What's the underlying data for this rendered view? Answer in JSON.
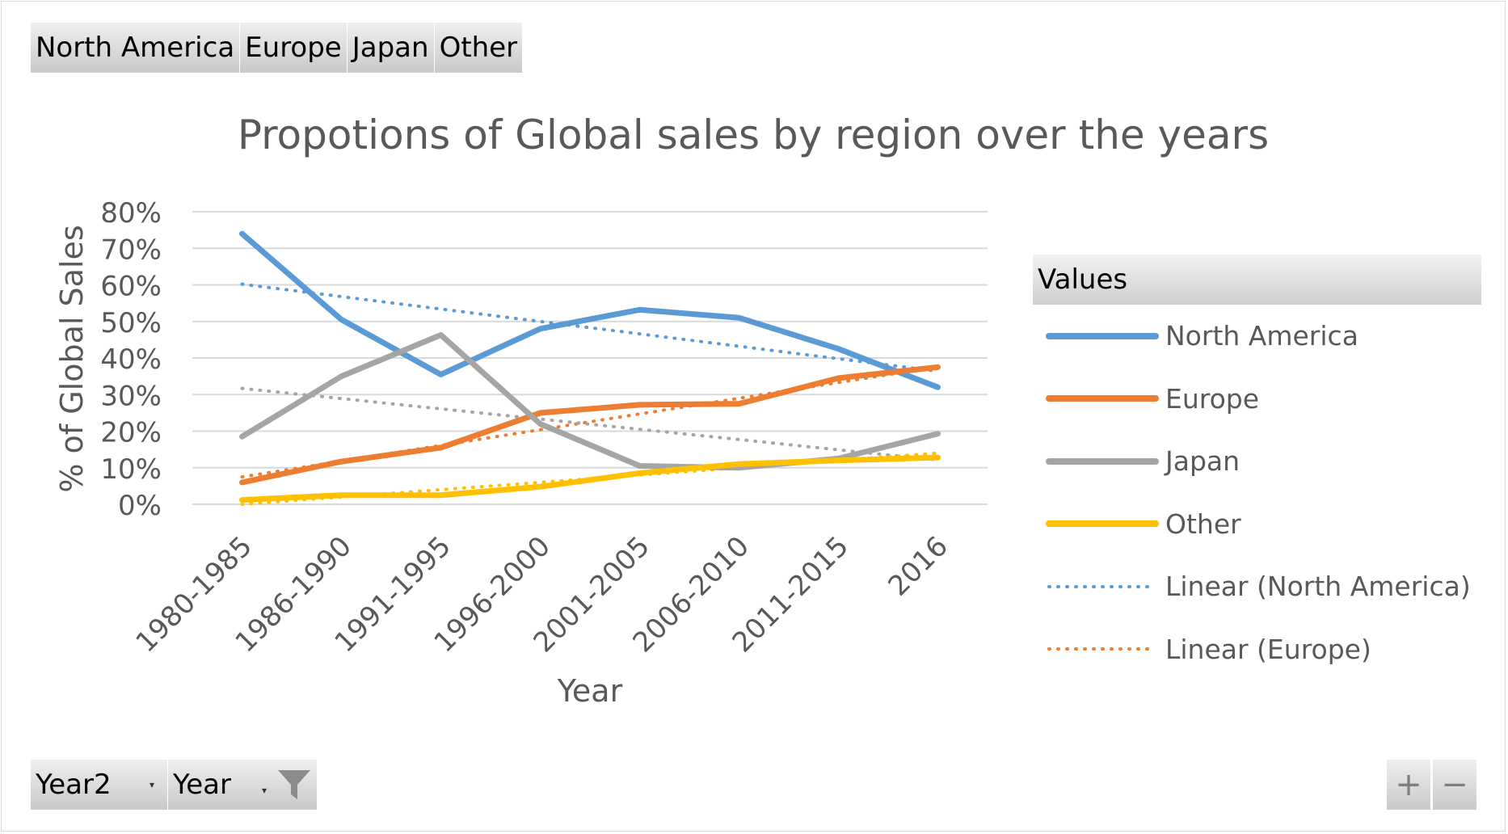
{
  "field_buttons_top": [
    "North America",
    "Europe",
    "Japan",
    "Other"
  ],
  "field_buttons_bottom": [
    {
      "label": "Year2",
      "icon": "dropdown-arrow-icon"
    },
    {
      "label": "Year",
      "icon": "filter-icon"
    }
  ],
  "zoom": {
    "plus": "+",
    "minus": "−"
  },
  "legend": {
    "header": "Values"
  },
  "colors": {
    "north_america": "#5B9BD5",
    "europe": "#ED7D31",
    "japan": "#A5A5A5",
    "other": "#FFC000",
    "grid": "#d9d9d9",
    "text": "#595959"
  },
  "chart_data": {
    "type": "line",
    "title": "Propotions of Global sales by region over the years",
    "xlabel": "Year",
    "ylabel": "% of Global Sales",
    "ylim": [
      0,
      0.8
    ],
    "y_ticks": [
      "0%",
      "10%",
      "20%",
      "30%",
      "40%",
      "50%",
      "60%",
      "70%",
      "80%"
    ],
    "grid": true,
    "legend_position": "right",
    "categories": [
      "1980-1985",
      "1986-1990",
      "1991-1995",
      "1996-2000",
      "2001-2005",
      "2006-2010",
      "2011-2015",
      "2016"
    ],
    "series": [
      {
        "name": "North America",
        "style": "solid",
        "color_key": "north_america",
        "values": [
          0.74,
          0.505,
          0.355,
          0.48,
          0.532,
          0.51,
          0.425,
          0.32
        ]
      },
      {
        "name": "Europe",
        "style": "solid",
        "color_key": "europe",
        "values": [
          0.06,
          0.117,
          0.155,
          0.25,
          0.272,
          0.275,
          0.345,
          0.375
        ]
      },
      {
        "name": "Japan",
        "style": "solid",
        "color_key": "japan",
        "values": [
          0.185,
          0.35,
          0.463,
          0.22,
          0.105,
          0.1,
          0.125,
          0.193
        ]
      },
      {
        "name": "Other",
        "style": "solid",
        "color_key": "other",
        "values": [
          0.012,
          0.025,
          0.025,
          0.048,
          0.085,
          0.11,
          0.12,
          0.128
        ]
      },
      {
        "name": "Linear (North America)",
        "style": "dotted",
        "color_key": "north_america",
        "values": [
          0.602,
          0.568,
          0.534,
          0.5,
          0.466,
          0.432,
          0.398,
          0.364
        ]
      },
      {
        "name": "Linear (Europe)",
        "style": "dotted",
        "color_key": "europe",
        "values": [
          0.075,
          0.118,
          0.161,
          0.204,
          0.247,
          0.29,
          0.333,
          0.376
        ]
      },
      {
        "name": "",
        "style": "dotted",
        "color_key": "japan",
        "in_legend": false,
        "values": [
          0.317,
          0.289,
          0.261,
          0.233,
          0.205,
          0.177,
          0.149,
          0.121
        ]
      },
      {
        "name": "",
        "style": "dotted",
        "color_key": "other",
        "in_legend": false,
        "values": [
          0.0,
          0.02,
          0.04,
          0.06,
          0.08,
          0.1,
          0.12,
          0.14
        ]
      }
    ]
  }
}
